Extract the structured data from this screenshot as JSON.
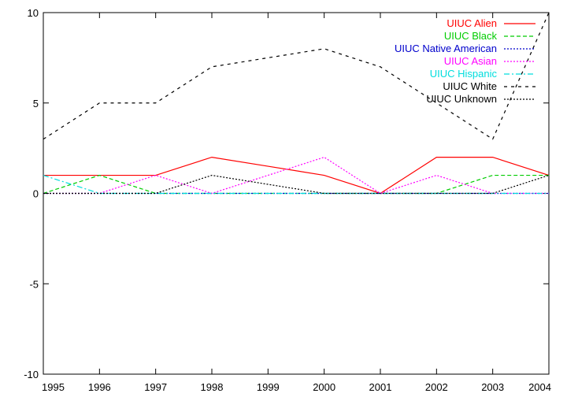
{
  "chart_data": {
    "type": "line",
    "x": [
      1995,
      1996,
      1997,
      1998,
      1999,
      2000,
      2001,
      2002,
      2003,
      2004
    ],
    "xlim": [
      1995,
      2004
    ],
    "ylim": [
      -10,
      10
    ],
    "x_ticks": [
      1995,
      1996,
      1997,
      1998,
      1999,
      2000,
      2001,
      2002,
      2003,
      2004
    ],
    "y_ticks": [
      10,
      5,
      0,
      -5,
      -10
    ],
    "grid": false,
    "legend_position": "top-right",
    "series": [
      {
        "name": "UIUC Alien",
        "color": "#ff0000",
        "dash": "solid",
        "values": [
          1,
          1,
          1,
          2,
          1.5,
          1,
          0,
          2,
          2,
          1
        ]
      },
      {
        "name": "UIUC Black",
        "color": "#00cc00",
        "dash": "dashed",
        "values": [
          0,
          1,
          0,
          0,
          0,
          0,
          0,
          0,
          1,
          1
        ]
      },
      {
        "name": "UIUC Native American",
        "color": "#0000cc",
        "dash": "dotted",
        "values": [
          0,
          0,
          0,
          0,
          0,
          0,
          0,
          0,
          0,
          0
        ]
      },
      {
        "name": "UIUC Asian",
        "color": "#ff00ff",
        "dash": "dotted",
        "values": [
          0,
          0,
          1,
          0,
          1,
          2,
          0,
          1,
          0,
          0
        ]
      },
      {
        "name": "UIUC Hispanic",
        "color": "#00dddd",
        "dash": "dashdot",
        "values": [
          1,
          0,
          0,
          0,
          0,
          0,
          0,
          0,
          0,
          0
        ]
      },
      {
        "name": "UIUC White",
        "color": "#000000",
        "dash": "sparse",
        "values": [
          3,
          5,
          5,
          7,
          7.5,
          8,
          7,
          5,
          3,
          10
        ]
      },
      {
        "name": "UIUC Unknown",
        "color": "#000000",
        "dash": "dotted",
        "values": [
          0,
          0,
          0,
          1,
          0.5,
          0,
          0,
          0,
          0,
          1
        ]
      }
    ]
  }
}
